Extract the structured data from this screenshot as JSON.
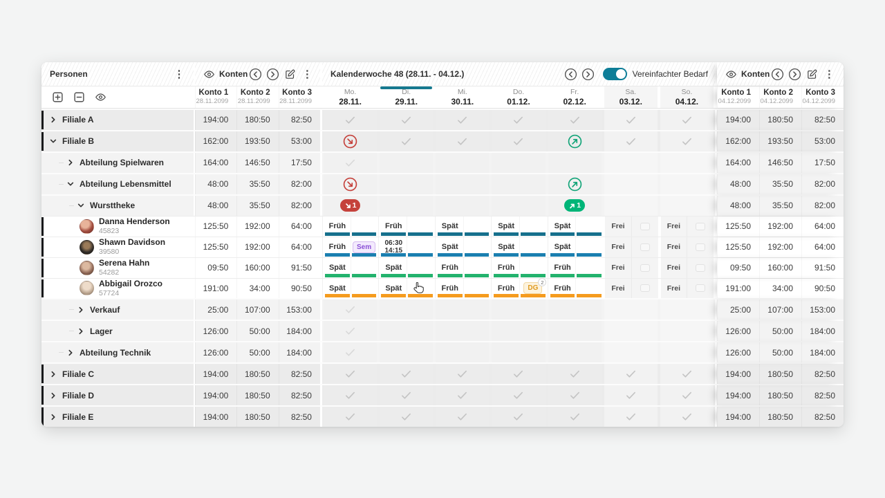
{
  "personen_panel": {
    "title": "Personen",
    "toolbar_icons": [
      "expand-all",
      "collapse-all",
      "visibility"
    ]
  },
  "konten_left": {
    "title": "Konten",
    "header_icons": [
      "visibility",
      "prev",
      "next",
      "edit",
      "menu"
    ],
    "columns": [
      {
        "label": "Konto 1",
        "date": "28.11.2099"
      },
      {
        "label": "Konto 2",
        "date": "28.11.2099"
      },
      {
        "label": "Konto 3",
        "date": "28.11.2099"
      }
    ]
  },
  "konten_right": {
    "title": "Konten",
    "header_icons": [
      "visibility",
      "prev",
      "next",
      "edit",
      "menu"
    ],
    "columns": [
      {
        "label": "Konto 1",
        "date": "04.12.2099"
      },
      {
        "label": "Konto 2",
        "date": "04.12.2099"
      },
      {
        "label": "Konto 3",
        "date": "04.12.2099"
      }
    ]
  },
  "calendar": {
    "title": "Kalenderwoche 48 (28.11. - 04.12.)",
    "toggle_label": "Vereinfachter Bedarf",
    "toggle_on": true,
    "days": [
      {
        "abbr": "Mo.",
        "date": "28.11.",
        "weekend": false,
        "active": false
      },
      {
        "abbr": "Di.",
        "date": "29.11.",
        "weekend": false,
        "active": true
      },
      {
        "abbr": "Mi.",
        "date": "30.11.",
        "weekend": false,
        "active": false
      },
      {
        "abbr": "Do.",
        "date": "01.12.",
        "weekend": false,
        "active": false
      },
      {
        "abbr": "Fr.",
        "date": "02.12.",
        "weekend": false,
        "active": false
      },
      {
        "abbr": "Sa.",
        "date": "03.12.",
        "weekend": true,
        "active": false
      },
      {
        "abbr": "So.",
        "date": "04.12.",
        "weekend": true,
        "active": false
      }
    ]
  },
  "colors": {
    "accent_teal": "#0d7d97",
    "active_day": "#15798f",
    "trend_red": "#c5423c",
    "trend_green": "#12a478",
    "trend_green_filled": "#00b578",
    "bar_teal": "#16708c",
    "bar_blue": "#1b7fb0",
    "bar_green": "#23b26d",
    "bar_orange": "#f59b1e"
  },
  "rows": [
    {
      "kind": "group",
      "level": 0,
      "label": "Filiale A",
      "expanded": false,
      "marked": true,
      "konten": [
        "194:00",
        "180:50",
        "82:50"
      ],
      "cells": [
        {
          "t": "check"
        },
        {
          "t": "check"
        },
        {
          "t": "check"
        },
        {
          "t": "check"
        },
        {
          "t": "check"
        },
        {
          "t": "check"
        },
        {
          "t": "check"
        }
      ]
    },
    {
      "kind": "group",
      "level": 0,
      "label": "Filiale B",
      "expanded": true,
      "marked": true,
      "konten": [
        "162:00",
        "193:50",
        "53:00"
      ],
      "cells": [
        {
          "t": "trend",
          "dir": "down"
        },
        {
          "t": "check"
        },
        {
          "t": "check"
        },
        {
          "t": "check"
        },
        {
          "t": "trend",
          "dir": "up"
        },
        {
          "t": "check"
        },
        {
          "t": "check"
        }
      ]
    },
    {
      "kind": "group",
      "level": 1,
      "label": "Abteilung Spielwaren",
      "expanded": false,
      "marked": false,
      "konten": [
        "164:00",
        "146:50",
        "17:50"
      ],
      "cells": [
        {
          "t": "check",
          "light": true
        },
        {},
        {},
        {},
        {},
        {},
        {}
      ]
    },
    {
      "kind": "group",
      "level": 1,
      "label": "Abteilung Lebensmittel",
      "expanded": true,
      "marked": false,
      "konten": [
        "48:00",
        "35:50",
        "82:00"
      ],
      "cells": [
        {
          "t": "trend",
          "dir": "down"
        },
        {},
        {},
        {},
        {
          "t": "trend",
          "dir": "up"
        },
        {},
        {}
      ]
    },
    {
      "kind": "group",
      "level": 2,
      "label": "Wursttheke",
      "expanded": true,
      "marked": false,
      "konten": [
        "48:00",
        "35:50",
        "82:00"
      ],
      "cells": [
        {
          "t": "trend",
          "dir": "down",
          "filled": true,
          "count": "1"
        },
        {},
        {},
        {},
        {
          "t": "trend",
          "dir": "up",
          "filled": true,
          "count": "1"
        },
        {},
        {}
      ]
    },
    {
      "kind": "person",
      "name": "Danna Henderson",
      "pid": "45823",
      "avatar": "a1",
      "marked": true,
      "konten": [
        "125:50",
        "192:00",
        "64:00"
      ],
      "cells": [
        {
          "t": "shift",
          "label": "Früh",
          "bar": "bar_teal"
        },
        {
          "t": "shift",
          "label": "Früh",
          "bar": "bar_teal"
        },
        {
          "t": "shift",
          "label": "Spät",
          "bar": "bar_teal"
        },
        {
          "t": "shift",
          "label": "Spät",
          "bar": "bar_teal"
        },
        {
          "t": "shift",
          "label": "Spät",
          "bar": "bar_teal"
        },
        {
          "t": "free",
          "label": "Frei"
        },
        {
          "t": "free",
          "label": "Frei"
        }
      ]
    },
    {
      "kind": "person",
      "name": "Shawn Davidson",
      "pid": "39580",
      "avatar": "a2",
      "marked": true,
      "konten": [
        "125:50",
        "192:00",
        "64:00"
      ],
      "cells": [
        {
          "t": "shift",
          "label": "Früh",
          "bar": "bar_blue",
          "badge": {
            "text": "Sem",
            "style": "sem"
          }
        },
        {
          "t": "shift",
          "times": [
            "06:30",
            "14:15"
          ],
          "bar": "bar_blue"
        },
        {
          "t": "shift",
          "label": "Spät",
          "bar": "bar_blue"
        },
        {
          "t": "shift",
          "label": "Spät",
          "bar": "bar_blue"
        },
        {
          "t": "shift",
          "label": "Spät",
          "bar": "bar_blue"
        },
        {
          "t": "free",
          "label": "Frei"
        },
        {
          "t": "free",
          "label": "Frei"
        }
      ]
    },
    {
      "kind": "person",
      "name": "Serena Hahn",
      "pid": "54282",
      "avatar": "a3",
      "marked": true,
      "konten": [
        "09:50",
        "160:00",
        "91:50"
      ],
      "cells": [
        {
          "t": "shift",
          "label": "Spät",
          "bar": "bar_green"
        },
        {
          "t": "shift",
          "label": "Spät",
          "bar": "bar_green"
        },
        {
          "t": "shift",
          "label": "Früh",
          "bar": "bar_green"
        },
        {
          "t": "shift",
          "label": "Früh",
          "bar": "bar_green"
        },
        {
          "t": "shift",
          "label": "Früh",
          "bar": "bar_green"
        },
        {
          "t": "free",
          "label": "Frei"
        },
        {
          "t": "free",
          "label": "Frei"
        }
      ]
    },
    {
      "kind": "person",
      "name": "Abbigail Orozco",
      "pid": "57724",
      "avatar": "a4",
      "marked": true,
      "konten": [
        "191:00",
        "34:00",
        "90:50"
      ],
      "cells": [
        {
          "t": "shift",
          "label": "Spät",
          "bar": "bar_orange"
        },
        {
          "t": "shift",
          "label": "Spät",
          "bar": "bar_orange"
        },
        {
          "t": "shift",
          "label": "Früh",
          "bar": "bar_orange"
        },
        {
          "t": "shift",
          "label": "Früh",
          "bar": "bar_orange",
          "badge": {
            "text": "DG",
            "style": "dg",
            "sup": "2"
          }
        },
        {
          "t": "shift",
          "label": "Früh",
          "bar": "bar_orange"
        },
        {
          "t": "free",
          "label": "Frei"
        },
        {
          "t": "free",
          "label": "Frei"
        }
      ]
    },
    {
      "kind": "group",
      "level": 2,
      "label": "Verkauf",
      "expanded": false,
      "marked": false,
      "konten": [
        "25:00",
        "107:00",
        "153:00"
      ],
      "cells": [
        {
          "t": "check",
          "light": true
        },
        {},
        {},
        {},
        {},
        {},
        {}
      ]
    },
    {
      "kind": "group",
      "level": 2,
      "label": "Lager",
      "expanded": false,
      "marked": false,
      "konten": [
        "126:00",
        "50:00",
        "184:00"
      ],
      "cells": [
        {
          "t": "check",
          "light": true
        },
        {},
        {},
        {},
        {},
        {},
        {}
      ]
    },
    {
      "kind": "group",
      "level": 1,
      "label": "Abteilung Technik",
      "expanded": false,
      "marked": false,
      "konten": [
        "126:00",
        "50:00",
        "184:00"
      ],
      "cells": [
        {
          "t": "check",
          "light": true
        },
        {},
        {},
        {},
        {},
        {},
        {}
      ]
    },
    {
      "kind": "group",
      "level": 0,
      "label": "Filiale C",
      "expanded": false,
      "marked": true,
      "konten": [
        "194:00",
        "180:50",
        "82:50"
      ],
      "cells": [
        {
          "t": "check"
        },
        {
          "t": "check"
        },
        {
          "t": "check"
        },
        {
          "t": "check"
        },
        {
          "t": "check"
        },
        {
          "t": "check"
        },
        {
          "t": "check"
        }
      ]
    },
    {
      "kind": "group",
      "level": 0,
      "label": "Filiale D",
      "expanded": false,
      "marked": true,
      "konten": [
        "194:00",
        "180:50",
        "82:50"
      ],
      "cells": [
        {
          "t": "check"
        },
        {
          "t": "check"
        },
        {
          "t": "check"
        },
        {
          "t": "check"
        },
        {
          "t": "check"
        },
        {
          "t": "check"
        },
        {
          "t": "check"
        }
      ]
    },
    {
      "kind": "group",
      "level": 0,
      "label": "Filiale E",
      "expanded": false,
      "marked": true,
      "konten": [
        "194:00",
        "180:50",
        "82:50"
      ],
      "cells": [
        {
          "t": "check"
        },
        {
          "t": "check"
        },
        {
          "t": "check"
        },
        {
          "t": "check"
        },
        {
          "t": "check"
        },
        {
          "t": "check"
        },
        {
          "t": "check"
        }
      ]
    }
  ]
}
